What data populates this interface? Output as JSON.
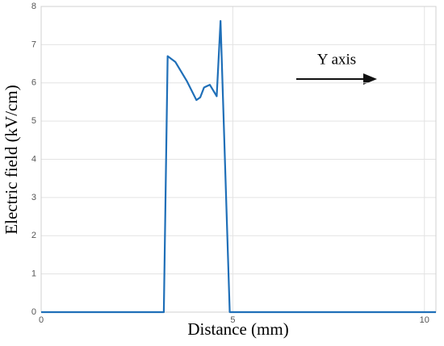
{
  "chart_data": {
    "type": "line",
    "x_label": "Distance (mm)",
    "y_label": "Electric field (kV/cm)",
    "annotation": "Y axis",
    "x": [
      0,
      3.2,
      3.3,
      3.5,
      3.8,
      4.05,
      4.15,
      4.25,
      4.4,
      4.58,
      4.68,
      4.92,
      10.3
    ],
    "series": [
      {
        "color": "#1f6fb8",
        "values": [
          0,
          0,
          6.7,
          6.55,
          6.05,
          5.55,
          5.62,
          5.88,
          5.95,
          5.65,
          7.62,
          0,
          0
        ]
      }
    ],
    "xlim": [
      0,
      10.3
    ],
    "ylim": [
      0,
      8
    ],
    "xticks": [
      0,
      5,
      10
    ],
    "yticks": [
      0,
      1,
      2,
      3,
      4,
      5,
      6,
      7,
      8
    ],
    "grid": true
  }
}
